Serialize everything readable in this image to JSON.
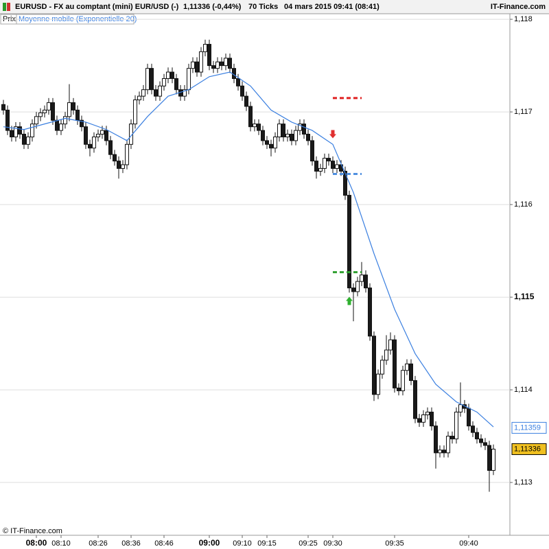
{
  "header": {
    "symbol": "EURUSD - FX au comptant (mini) EUR/USD (-)",
    "last": "1,11336 (-0,44%)",
    "period": "70 Ticks",
    "date": "04 mars 2015 09:41 (08:41)",
    "site": "IT-Finance.com"
  },
  "legend": {
    "price": "Prix",
    "indicator": "Moyenne mobile (Exponentielle 20)"
  },
  "footer": "© IT-Finance.com",
  "chart_data": {
    "type": "candlestick",
    "xlim": [
      -0.83,
      123
    ],
    "ylim": [
      1.11243,
      1.11806
    ],
    "grid": true,
    "up_color": "#ffffff",
    "down_color": "#1a1a1a",
    "xticks": [
      {
        "value": 8,
        "label": "08:00",
        "bold": true
      },
      {
        "value": 14,
        "label": "08:10"
      },
      {
        "value": 23,
        "label": "08:26"
      },
      {
        "value": 31,
        "label": "08:36"
      },
      {
        "value": 39,
        "label": "08:46"
      },
      {
        "value": 50,
        "label": "09:00",
        "bold": true
      },
      {
        "value": 58,
        "label": "09:10"
      },
      {
        "value": 64,
        "label": "09:15"
      },
      {
        "value": 74,
        "label": "09:25"
      },
      {
        "value": 80,
        "label": "09:30"
      },
      {
        "value": 95,
        "label": "09:35"
      },
      {
        "value": 113,
        "label": "09:40"
      }
    ],
    "yticks": [
      {
        "value": 1.118,
        "label": "1,118"
      },
      {
        "value": 1.117,
        "label": "1,117"
      },
      {
        "value": 1.116,
        "label": "1,116"
      },
      {
        "value": 1.115,
        "label": "1,115",
        "bold": true
      },
      {
        "value": 1.114,
        "label": "1,114"
      },
      {
        "value": 1.113,
        "label": "1,113"
      }
    ],
    "open": [
      1.11708,
      1.11702,
      1.1168,
      1.11673,
      1.11684,
      1.11676,
      1.11665,
      1.11673,
      1.11687,
      1.11695,
      1.11699,
      1.11702,
      1.1171,
      1.11691,
      1.1168,
      1.11687,
      1.11695,
      1.1171,
      1.11702,
      1.11691,
      1.11684,
      1.11665,
      1.11661,
      1.11673,
      1.11676,
      1.1168,
      1.11669,
      1.11654,
      1.11647,
      1.11639,
      1.11643,
      1.11665,
      1.11687,
      1.11713,
      1.11717,
      1.11724,
      1.11747,
      1.11724,
      1.11717,
      1.11728,
      1.11736,
      1.11743,
      1.11736,
      1.11724,
      1.11717,
      1.11724,
      1.11747,
      1.11754,
      1.11743,
      1.11765,
      1.11773,
      1.1175,
      1.11747,
      1.11754,
      1.1175,
      1.11758,
      1.11747,
      1.11736,
      1.11728,
      1.11717,
      1.11706,
      1.11684,
      1.11687,
      1.1168,
      1.11669,
      1.11665,
      1.11661,
      1.11673,
      1.11687,
      1.11673,
      1.11676,
      1.11669,
      1.1168,
      1.11687,
      1.11676,
      1.11669,
      1.11647,
      1.11636,
      1.11639,
      1.1165,
      1.11647,
      1.11639,
      1.11643,
      1.11636,
      1.1161,
      1.1151,
      1.11506,
      1.11517,
      1.11524,
      1.1151,
      1.11458,
      1.11395,
      1.11417,
      1.11432,
      1.11443,
      1.11454,
      1.11402,
      1.11399,
      1.11421,
      1.11428,
      1.1141,
      1.11369,
      1.11365,
      1.11373,
      1.11376,
      1.11361,
      1.11332,
      1.11335,
      1.11332,
      1.1135,
      1.11347,
      1.11376,
      1.11384,
      1.1138,
      1.11361,
      1.11354,
      1.11347,
      1.11343,
      1.1134,
      1.11313
    ],
    "high": [
      1.11713,
      1.11707,
      1.11685,
      1.11689,
      1.11689,
      1.11681,
      1.11678,
      1.11692,
      1.117,
      1.11704,
      1.11707,
      1.11715,
      1.11715,
      1.11696,
      1.11692,
      1.117,
      1.1173,
      1.11715,
      1.11707,
      1.11696,
      1.11689,
      1.1167,
      1.11678,
      1.11681,
      1.11685,
      1.11685,
      1.11674,
      1.11659,
      1.11652,
      1.11648,
      1.1167,
      1.11692,
      1.11718,
      1.11722,
      1.11729,
      1.11752,
      1.11752,
      1.11729,
      1.11733,
      1.11741,
      1.11748,
      1.11748,
      1.11741,
      1.11729,
      1.11729,
      1.11752,
      1.11759,
      1.11759,
      1.1177,
      1.11778,
      1.11778,
      1.11755,
      1.11759,
      1.11759,
      1.11763,
      1.11763,
      1.11752,
      1.11741,
      1.11733,
      1.11722,
      1.11711,
      1.11692,
      1.11692,
      1.11685,
      1.11674,
      1.1167,
      1.11678,
      1.11692,
      1.11692,
      1.11681,
      1.11681,
      1.11685,
      1.11692,
      1.11692,
      1.11681,
      1.11674,
      1.11652,
      1.11644,
      1.11655,
      1.11655,
      1.11652,
      1.11648,
      1.11648,
      1.11641,
      1.11615,
      1.11515,
      1.11522,
      1.11538,
      1.11529,
      1.11515,
      1.11463,
      1.11422,
      1.11437,
      1.11459,
      1.11462,
      1.11459,
      1.11407,
      1.11426,
      1.11433,
      1.11433,
      1.11415,
      1.11374,
      1.11378,
      1.11381,
      1.11381,
      1.11366,
      1.1134,
      1.1134,
      1.11355,
      1.11355,
      1.11381,
      1.11408,
      1.11389,
      1.11385,
      1.11366,
      1.11359,
      1.11352,
      1.11348,
      1.11345,
      1.11341
    ],
    "low": [
      1.11697,
      1.11675,
      1.11668,
      1.11668,
      1.11671,
      1.1166,
      1.1166,
      1.11668,
      1.11682,
      1.1169,
      1.11694,
      1.11697,
      1.11686,
      1.11675,
      1.11675,
      1.11682,
      1.1169,
      1.11697,
      1.11686,
      1.11679,
      1.1166,
      1.11652,
      1.11656,
      1.11668,
      1.11671,
      1.11664,
      1.11649,
      1.11642,
      1.11628,
      1.11634,
      1.11638,
      1.1166,
      1.11682,
      1.11708,
      1.11712,
      1.11719,
      1.11719,
      1.11712,
      1.11712,
      1.11723,
      1.11731,
      1.11731,
      1.11719,
      1.11712,
      1.11712,
      1.11719,
      1.11742,
      1.11738,
      1.11738,
      1.1176,
      1.11745,
      1.11742,
      1.11742,
      1.11745,
      1.11745,
      1.11742,
      1.11731,
      1.11723,
      1.11712,
      1.11701,
      1.11679,
      1.11679,
      1.11675,
      1.11664,
      1.1166,
      1.11652,
      1.11656,
      1.11668,
      1.11668,
      1.11668,
      1.11664,
      1.11664,
      1.11675,
      1.11671,
      1.11664,
      1.11642,
      1.11628,
      1.11631,
      1.11634,
      1.11642,
      1.11634,
      1.11634,
      1.11631,
      1.11605,
      1.11505,
      1.11474,
      1.11501,
      1.11512,
      1.11505,
      1.11453,
      1.11388,
      1.1139,
      1.11412,
      1.11427,
      1.11438,
      1.11397,
      1.11394,
      1.11394,
      1.11416,
      1.11405,
      1.11364,
      1.1136,
      1.1136,
      1.11368,
      1.11356,
      1.11315,
      1.11327,
      1.11327,
      1.11327,
      1.11342,
      1.11342,
      1.11371,
      1.11375,
      1.11356,
      1.11349,
      1.11342,
      1.11338,
      1.11335,
      1.1129,
      1.11308
    ],
    "close": [
      1.11702,
      1.1168,
      1.11673,
      1.11684,
      1.11676,
      1.11665,
      1.11673,
      1.11687,
      1.11695,
      1.11699,
      1.11702,
      1.1171,
      1.11691,
      1.1168,
      1.11687,
      1.11695,
      1.1171,
      1.11702,
      1.11691,
      1.11684,
      1.11665,
      1.11661,
      1.11673,
      1.11676,
      1.1168,
      1.11669,
      1.11654,
      1.11647,
      1.11639,
      1.11643,
      1.11665,
      1.11687,
      1.11713,
      1.11717,
      1.11724,
      1.11747,
      1.11724,
      1.11717,
      1.11728,
      1.11736,
      1.11743,
      1.11736,
      1.11724,
      1.11717,
      1.11724,
      1.11747,
      1.11754,
      1.11743,
      1.11765,
      1.11773,
      1.1175,
      1.11747,
      1.11754,
      1.1175,
      1.11758,
      1.11747,
      1.11736,
      1.11728,
      1.11717,
      1.11706,
      1.11684,
      1.11687,
      1.1168,
      1.11669,
      1.11665,
      1.11661,
      1.11673,
      1.11687,
      1.11673,
      1.11676,
      1.11669,
      1.1168,
      1.11687,
      1.11676,
      1.11669,
      1.11647,
      1.11636,
      1.11639,
      1.1165,
      1.11647,
      1.11639,
      1.11643,
      1.11636,
      1.1161,
      1.1151,
      1.11506,
      1.11517,
      1.11524,
      1.1151,
      1.11458,
      1.11395,
      1.11417,
      1.11432,
      1.11443,
      1.11454,
      1.11402,
      1.11399,
      1.11421,
      1.11428,
      1.1141,
      1.11369,
      1.11365,
      1.11373,
      1.11376,
      1.11361,
      1.11332,
      1.11335,
      1.11332,
      1.1135,
      1.11347,
      1.11376,
      1.11384,
      1.1138,
      1.11361,
      1.11354,
      1.11347,
      1.11343,
      1.1134,
      1.11313,
      1.11336
    ],
    "ema": {
      "color": "#3a7fe0",
      "x": [
        0,
        5,
        10,
        15,
        20,
        25,
        30,
        35,
        40,
        45,
        50,
        55,
        60,
        65,
        70,
        75,
        80,
        85,
        90,
        95,
        100,
        105,
        110,
        115,
        119
      ],
      "values": [
        1.11684,
        1.11681,
        1.11687,
        1.11693,
        1.11689,
        1.11681,
        1.11669,
        1.11695,
        1.11717,
        1.11724,
        1.11738,
        1.11743,
        1.11728,
        1.11702,
        1.11689,
        1.1168,
        1.11665,
        1.11613,
        1.11547,
        1.11487,
        1.11439,
        1.11406,
        1.11387,
        1.11376,
        1.1136
      ]
    },
    "levels": [
      {
        "value": 1.11715,
        "x": [
          80,
          87
        ],
        "color": "#e02020"
      },
      {
        "value": 1.11633,
        "x": [
          80,
          87
        ],
        "color": "#5090e0"
      },
      {
        "value": 1.11527,
        "x": [
          80,
          87
        ],
        "color": "#30a030"
      }
    ],
    "signals": [
      {
        "index": 80,
        "value": 1.11676,
        "direction": "down",
        "color": "#e03030"
      },
      {
        "index": 84,
        "value": 1.11496,
        "direction": "up",
        "color": "#30b030"
      }
    ],
    "price_tags": [
      {
        "value": 1.11359,
        "label": "1,11359",
        "color": "#3a7fe0",
        "fill": "#ffffff"
      },
      {
        "value": 1.11336,
        "label": "1,11336",
        "color": "#000000",
        "fill": "#f0c020"
      }
    ]
  }
}
